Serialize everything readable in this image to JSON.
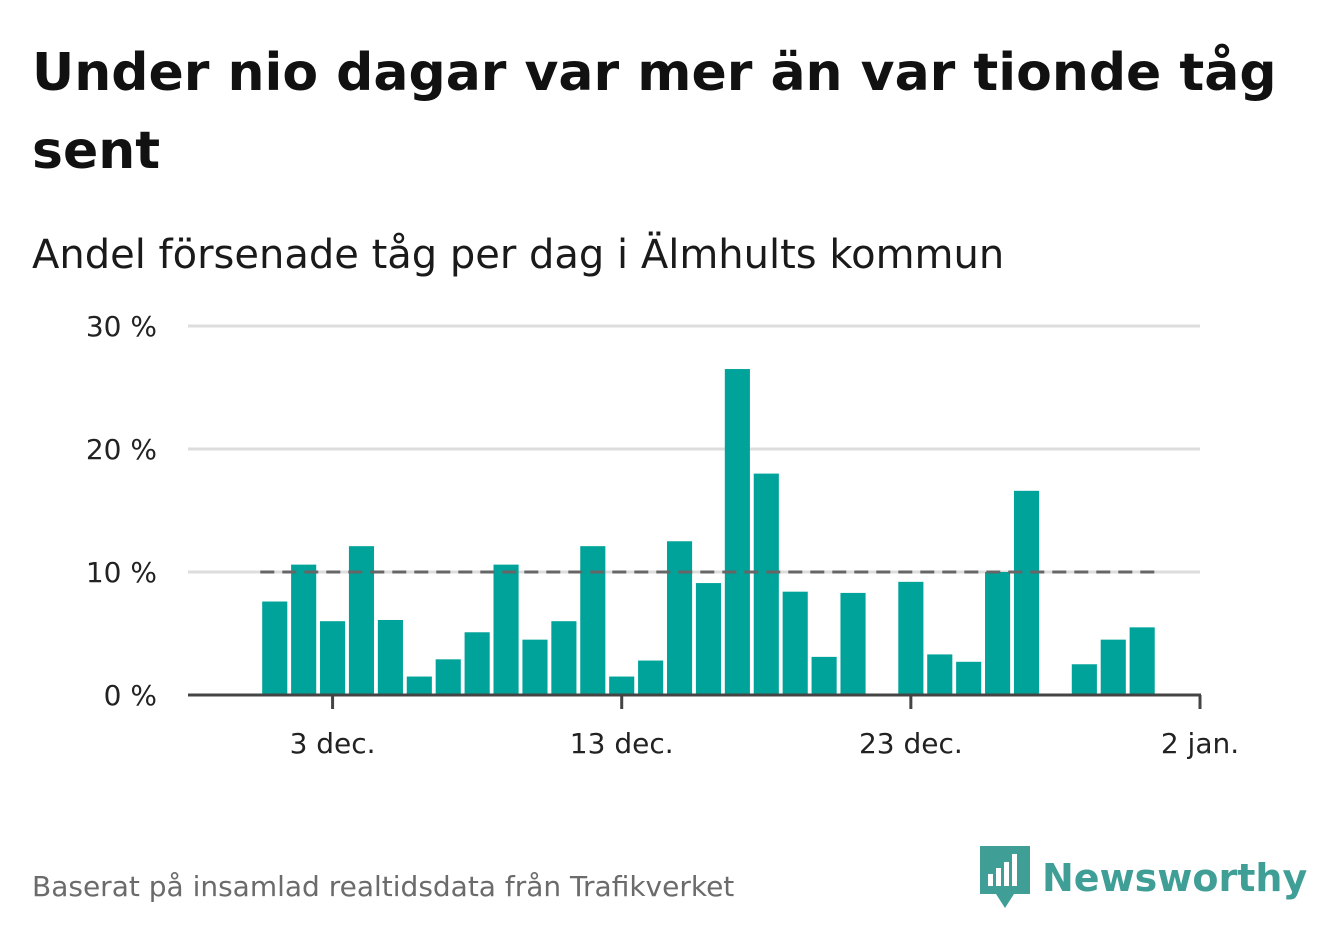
{
  "title": "Under nio dagar var mer än var tionde tåg sent",
  "subtitle": "Andel försenade tåg per dag i Älmhults kommun",
  "footer": "Baserat på insamlad realtidsdata från Trafikverket",
  "brand": {
    "name": "Newsworthy",
    "logo_icon": "newsworthy-bar-chart-icon"
  },
  "colors": {
    "bar": "#00a39a",
    "reference_line": "#666666",
    "grid": "#dddddd",
    "axis": "#444444",
    "brand": "#3f9e96"
  },
  "chart_data": {
    "type": "bar",
    "title": "Under nio dagar var mer än var tionde tåg sent",
    "subtitle": "Andel försenade tåg per dag i Älmhults kommun",
    "x": [
      "2023-12-01",
      "2023-12-02",
      "2023-12-03",
      "2023-12-04",
      "2023-12-05",
      "2023-12-06",
      "2023-12-07",
      "2023-12-08",
      "2023-12-09",
      "2023-12-10",
      "2023-12-11",
      "2023-12-12",
      "2023-12-13",
      "2023-12-14",
      "2023-12-15",
      "2023-12-16",
      "2023-12-17",
      "2023-12-18",
      "2023-12-19",
      "2023-12-20",
      "2023-12-21",
      "2023-12-22",
      "2023-12-23",
      "2023-12-24",
      "2023-12-25",
      "2023-12-26",
      "2023-12-27",
      "2023-12-28",
      "2023-12-29",
      "2023-12-30",
      "2023-12-31",
      "2024-01-01"
    ],
    "values": [
      7.6,
      10.6,
      6.0,
      12.1,
      6.1,
      1.5,
      2.9,
      5.1,
      10.6,
      4.5,
      6.0,
      12.1,
      1.5,
      2.8,
      12.5,
      9.1,
      26.5,
      18.0,
      8.4,
      3.1,
      8.3,
      null,
      9.2,
      3.3,
      2.7,
      10.0,
      16.6,
      null,
      2.5,
      4.5,
      5.5,
      null
    ],
    "unit": "%",
    "reference_line": {
      "value": 10,
      "style": "dashed"
    },
    "ylim": [
      0,
      30
    ],
    "yticks": [
      0,
      10,
      20,
      30
    ],
    "ytick_labels": [
      "0 %",
      "10 %",
      "20 %",
      "30 %"
    ],
    "xticks": [
      "2023-12-03",
      "2023-12-13",
      "2023-12-23",
      "2024-01-02"
    ],
    "xtick_labels": [
      "3 dec.",
      "13 dec.",
      "23 dec.",
      "2 jan."
    ],
    "xlim": [
      "2023-11-28",
      "2024-01-02"
    ],
    "grid": true,
    "legend": "none"
  }
}
